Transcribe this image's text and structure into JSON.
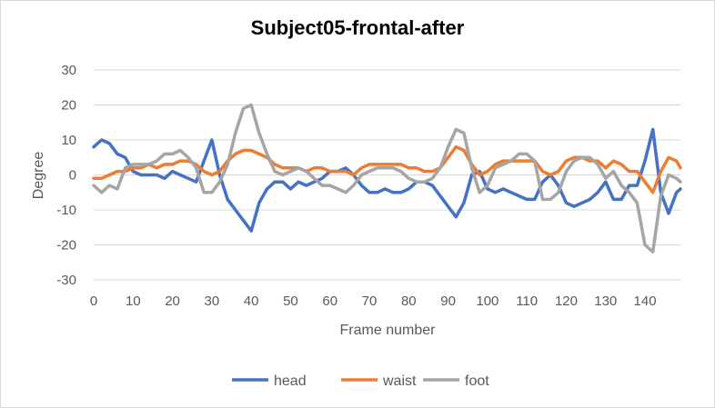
{
  "chart_data": {
    "type": "line",
    "title": "Subject05-frontal-after",
    "xlabel": "Frame number",
    "ylabel": "Degree",
    "xlim": [
      0,
      149
    ],
    "ylim": [
      -30,
      30
    ],
    "x_ticks": [
      0,
      10,
      20,
      30,
      40,
      50,
      60,
      70,
      80,
      90,
      100,
      110,
      120,
      130,
      140
    ],
    "y_ticks": [
      30,
      20,
      10,
      0,
      -10,
      -20,
      -30
    ],
    "gridlines": true,
    "legend": "bottom",
    "x": [
      0,
      2,
      4,
      6,
      8,
      10,
      12,
      14,
      16,
      18,
      20,
      22,
      24,
      26,
      28,
      30,
      32,
      34,
      36,
      38,
      40,
      42,
      44,
      46,
      48,
      50,
      52,
      54,
      56,
      58,
      60,
      62,
      64,
      66,
      68,
      70,
      72,
      74,
      76,
      78,
      80,
      82,
      84,
      86,
      88,
      90,
      92,
      94,
      96,
      98,
      100,
      102,
      104,
      106,
      108,
      110,
      112,
      114,
      116,
      118,
      120,
      122,
      124,
      126,
      128,
      130,
      132,
      134,
      136,
      138,
      140,
      142,
      144,
      146,
      148,
      149
    ],
    "series": [
      {
        "name": "head",
        "color": "#4472C4",
        "values": [
          8,
          10,
          9,
          6,
          5,
          1,
          0,
          0,
          0,
          -1,
          1,
          0,
          -1,
          -2,
          4,
          10,
          0,
          -7,
          -10,
          -13,
          -16,
          -8,
          -4,
          -2,
          -2,
          -4,
          -2,
          -3,
          -2,
          -1,
          1,
          1,
          2,
          0,
          -3,
          -5,
          -5,
          -4,
          -5,
          -5,
          -4,
          -2,
          -2,
          -3,
          -6,
          -9,
          -12,
          -8,
          0,
          1,
          -4,
          -5,
          -4,
          -5,
          -6,
          -7,
          -7,
          -2,
          0,
          -3,
          -8,
          -9,
          -8,
          -7,
          -5,
          -2,
          -7,
          -7,
          -3,
          -3,
          4,
          13,
          -5,
          -11,
          -5,
          -4
        ]
      },
      {
        "name": "waist",
        "color": "#ED7D31",
        "values": [
          -1,
          -1,
          0,
          1,
          1,
          2,
          2,
          3,
          2,
          3,
          3,
          4,
          4,
          3,
          1,
          0,
          1,
          4,
          6,
          7,
          7,
          6,
          5,
          3,
          2,
          2,
          2,
          1,
          2,
          2,
          1,
          1,
          1,
          0,
          2,
          3,
          3,
          3,
          3,
          3,
          2,
          2,
          1,
          1,
          2,
          5,
          8,
          7,
          3,
          0,
          1,
          3,
          4,
          4,
          4,
          4,
          4,
          1,
          0,
          1,
          4,
          5,
          5,
          4,
          4,
          2,
          4,
          3,
          1,
          1,
          -2,
          -5,
          1,
          5,
          4,
          2
        ]
      },
      {
        "name": "foot",
        "color": "#A5A5A5",
        "values": [
          -3,
          -5,
          -3,
          -4,
          2,
          3,
          3,
          3,
          4,
          6,
          6,
          7,
          5,
          2,
          -5,
          -5,
          -2,
          3,
          12,
          19,
          20,
          12,
          6,
          1,
          0,
          1,
          2,
          1,
          -1,
          -3,
          -3,
          -4,
          -5,
          -3,
          0,
          1,
          2,
          2,
          2,
          1,
          -1,
          -2,
          -2,
          -1,
          2,
          8,
          13,
          12,
          2,
          -5,
          -3,
          2,
          3,
          4,
          6,
          6,
          4,
          -7,
          -7,
          -5,
          1,
          4,
          5,
          5,
          3,
          -1,
          1,
          -3,
          -5,
          -8,
          -20,
          -22,
          -6,
          0,
          -1,
          -2
        ]
      }
    ]
  }
}
